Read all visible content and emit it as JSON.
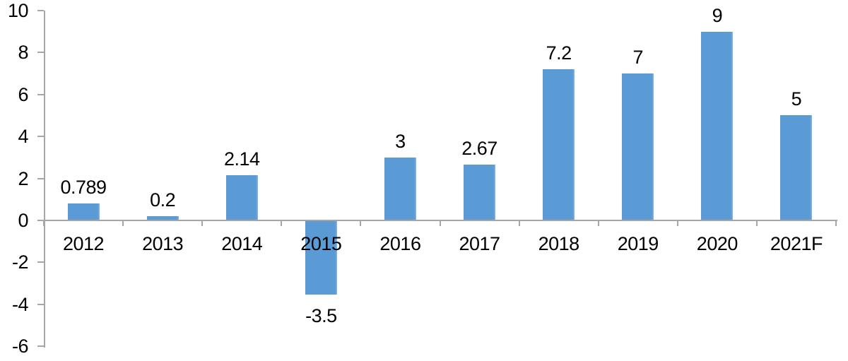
{
  "chart_data": {
    "type": "bar",
    "title": "",
    "xlabel": "",
    "ylabel": "",
    "categories": [
      "2012",
      "2013",
      "2014",
      "2015",
      "2016",
      "2017",
      "2018",
      "2019",
      "2020",
      "2021F"
    ],
    "values": [
      0.789,
      0.2,
      2.14,
      -3.5,
      3,
      2.67,
      7.2,
      7,
      9,
      5
    ],
    "data_labels": [
      "0.789",
      "0.2",
      "2.14",
      "-3.5",
      "3",
      "2.67",
      "7.2",
      "7",
      "9",
      "5"
    ],
    "ylim": [
      -6,
      10
    ],
    "yticks": [
      10,
      8,
      6,
      4,
      2,
      0,
      -2,
      -4,
      -6
    ],
    "grid": false,
    "legend": false,
    "bar_color": "#5B9BD5",
    "bar_edge_highlight": "#8AB5E1",
    "axis_color": "#A6A6A6",
    "text_color": "#000000",
    "background_color": "#FFFFFF"
  }
}
